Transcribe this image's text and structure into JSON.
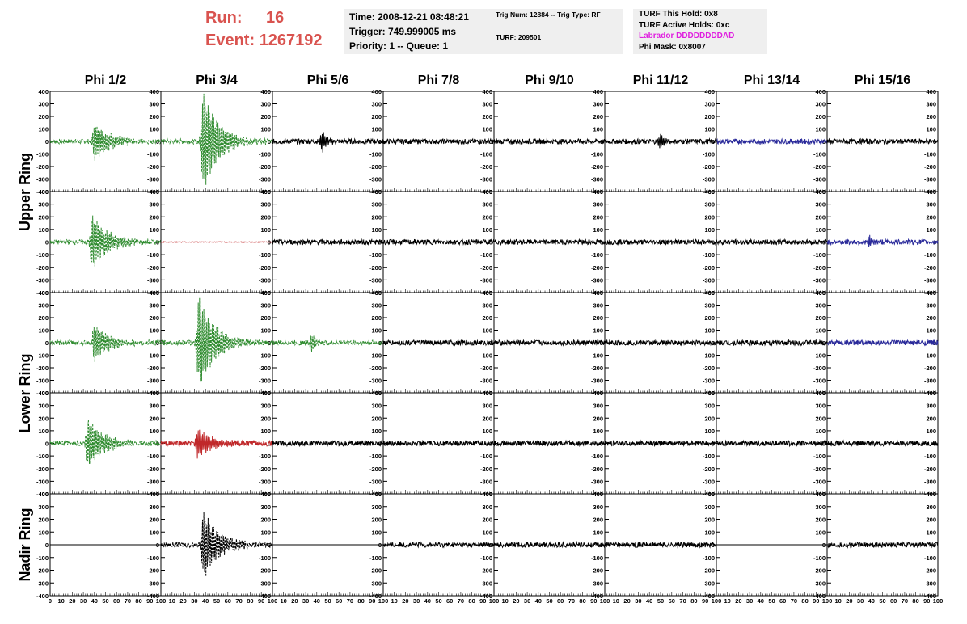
{
  "run": {
    "run_label": "Run:",
    "run_value": "16",
    "event_label": "Event:",
    "event_value": "1267192"
  },
  "time_box": {
    "time": "Time: 2008-12-21 08:48:21",
    "trigger": "Trigger: 749.999005 ms",
    "priority": "Priority: 1 -- Queue: 1"
  },
  "trig_box": {
    "trig": "Trig Num: 12884 -- Trig Type: RF",
    "turf": "TURF: 209501"
  },
  "turf_box": {
    "hold": "TURF This Hold: 0x8",
    "active": "TURF Active Holds: 0xc",
    "labrador": "Labrador DDDDDDDDAD",
    "phimask": "Phi Mask: 0x8007"
  },
  "colors": {
    "labrador": "#e020e0",
    "run": "#d9534f",
    "green": "#2e8b2e",
    "red": "#c0282a",
    "blue": "#2a2a9a",
    "black": "#000000"
  },
  "columns": [
    "Phi 1/2",
    "Phi 3/4",
    "Phi 5/6",
    "Phi 7/8",
    "Phi 9/10",
    "Phi 11/12",
    "Phi 13/14",
    "Phi 15/16"
  ],
  "row_labels": [
    "Upper Ring",
    "Lower Ring",
    "Nadir Ring"
  ],
  "y_ticks": [
    "400",
    "300",
    "200",
    "100",
    "0",
    "-100",
    "-200",
    "-300",
    "-400"
  ],
  "x_ticks": [
    "0",
    "10",
    "20",
    "30",
    "40",
    "50",
    "60",
    "70",
    "80",
    "90",
    "100"
  ],
  "chart_data": {
    "type": "line",
    "title": "",
    "ylim": [
      -400,
      400
    ],
    "xlim": [
      0,
      100
    ],
    "grid": false,
    "rows": 5,
    "cols": 8,
    "panels": [
      [
        "green-pulse-40",
        "green-pulse-38",
        "black-noise-burst",
        "black-noise",
        "black-noise",
        "black-noise-burst",
        "blue-noise",
        "black-noise"
      ],
      [
        "green-pulse-38",
        "red-flat",
        "black-noise",
        "black-noise",
        "black-noise",
        "black-noise",
        "black-noise",
        "blue-noise-burst"
      ],
      [
        "green-pulse-40",
        "green-pulse-34",
        "green-noise-burst",
        "black-noise",
        "black-noise",
        "black-noise",
        "black-noise",
        "blue-noise"
      ],
      [
        "green-pulse-34",
        "red-pulse-33",
        "black-noise",
        "black-noise",
        "black-noise",
        "black-noise",
        "black-noise",
        "black-noise"
      ],
      [
        "flat",
        "black-pulse-38",
        "flat",
        "black-noise",
        "black-noise",
        "black-noise",
        "flat",
        "black-noise"
      ]
    ],
    "peak_amplitudes": [
      [
        150,
        400,
        90,
        30,
        30,
        60,
        30,
        30
      ],
      [
        220,
        5,
        30,
        30,
        30,
        30,
        30,
        50
      ],
      [
        150,
        380,
        80,
        30,
        30,
        30,
        30,
        35
      ],
      [
        210,
        120,
        30,
        30,
        30,
        30,
        30,
        30
      ],
      [
        0,
        270,
        0,
        30,
        30,
        30,
        0,
        30
      ]
    ]
  }
}
